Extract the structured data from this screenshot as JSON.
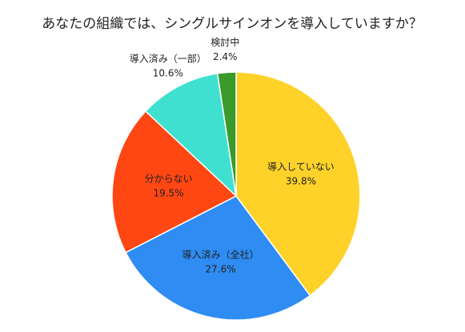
{
  "chart_data": {
    "type": "pie",
    "title": "あなたの組織では、シングルサインオンを導入していますか？",
    "categories": [
      "導入していない",
      "導入済み（全社）",
      "分からない",
      "導入済み（一部）",
      "検討中"
    ],
    "values": [
      39.8,
      27.6,
      19.5,
      10.6,
      2.4
    ],
    "value_labels": [
      "39.8%",
      "27.6%",
      "19.5%",
      "10.6%",
      "2.4%"
    ],
    "colors": [
      "#ffd22a",
      "#2e8cf2",
      "#ff4714",
      "#40e0d0",
      "#3a9a2a"
    ]
  }
}
